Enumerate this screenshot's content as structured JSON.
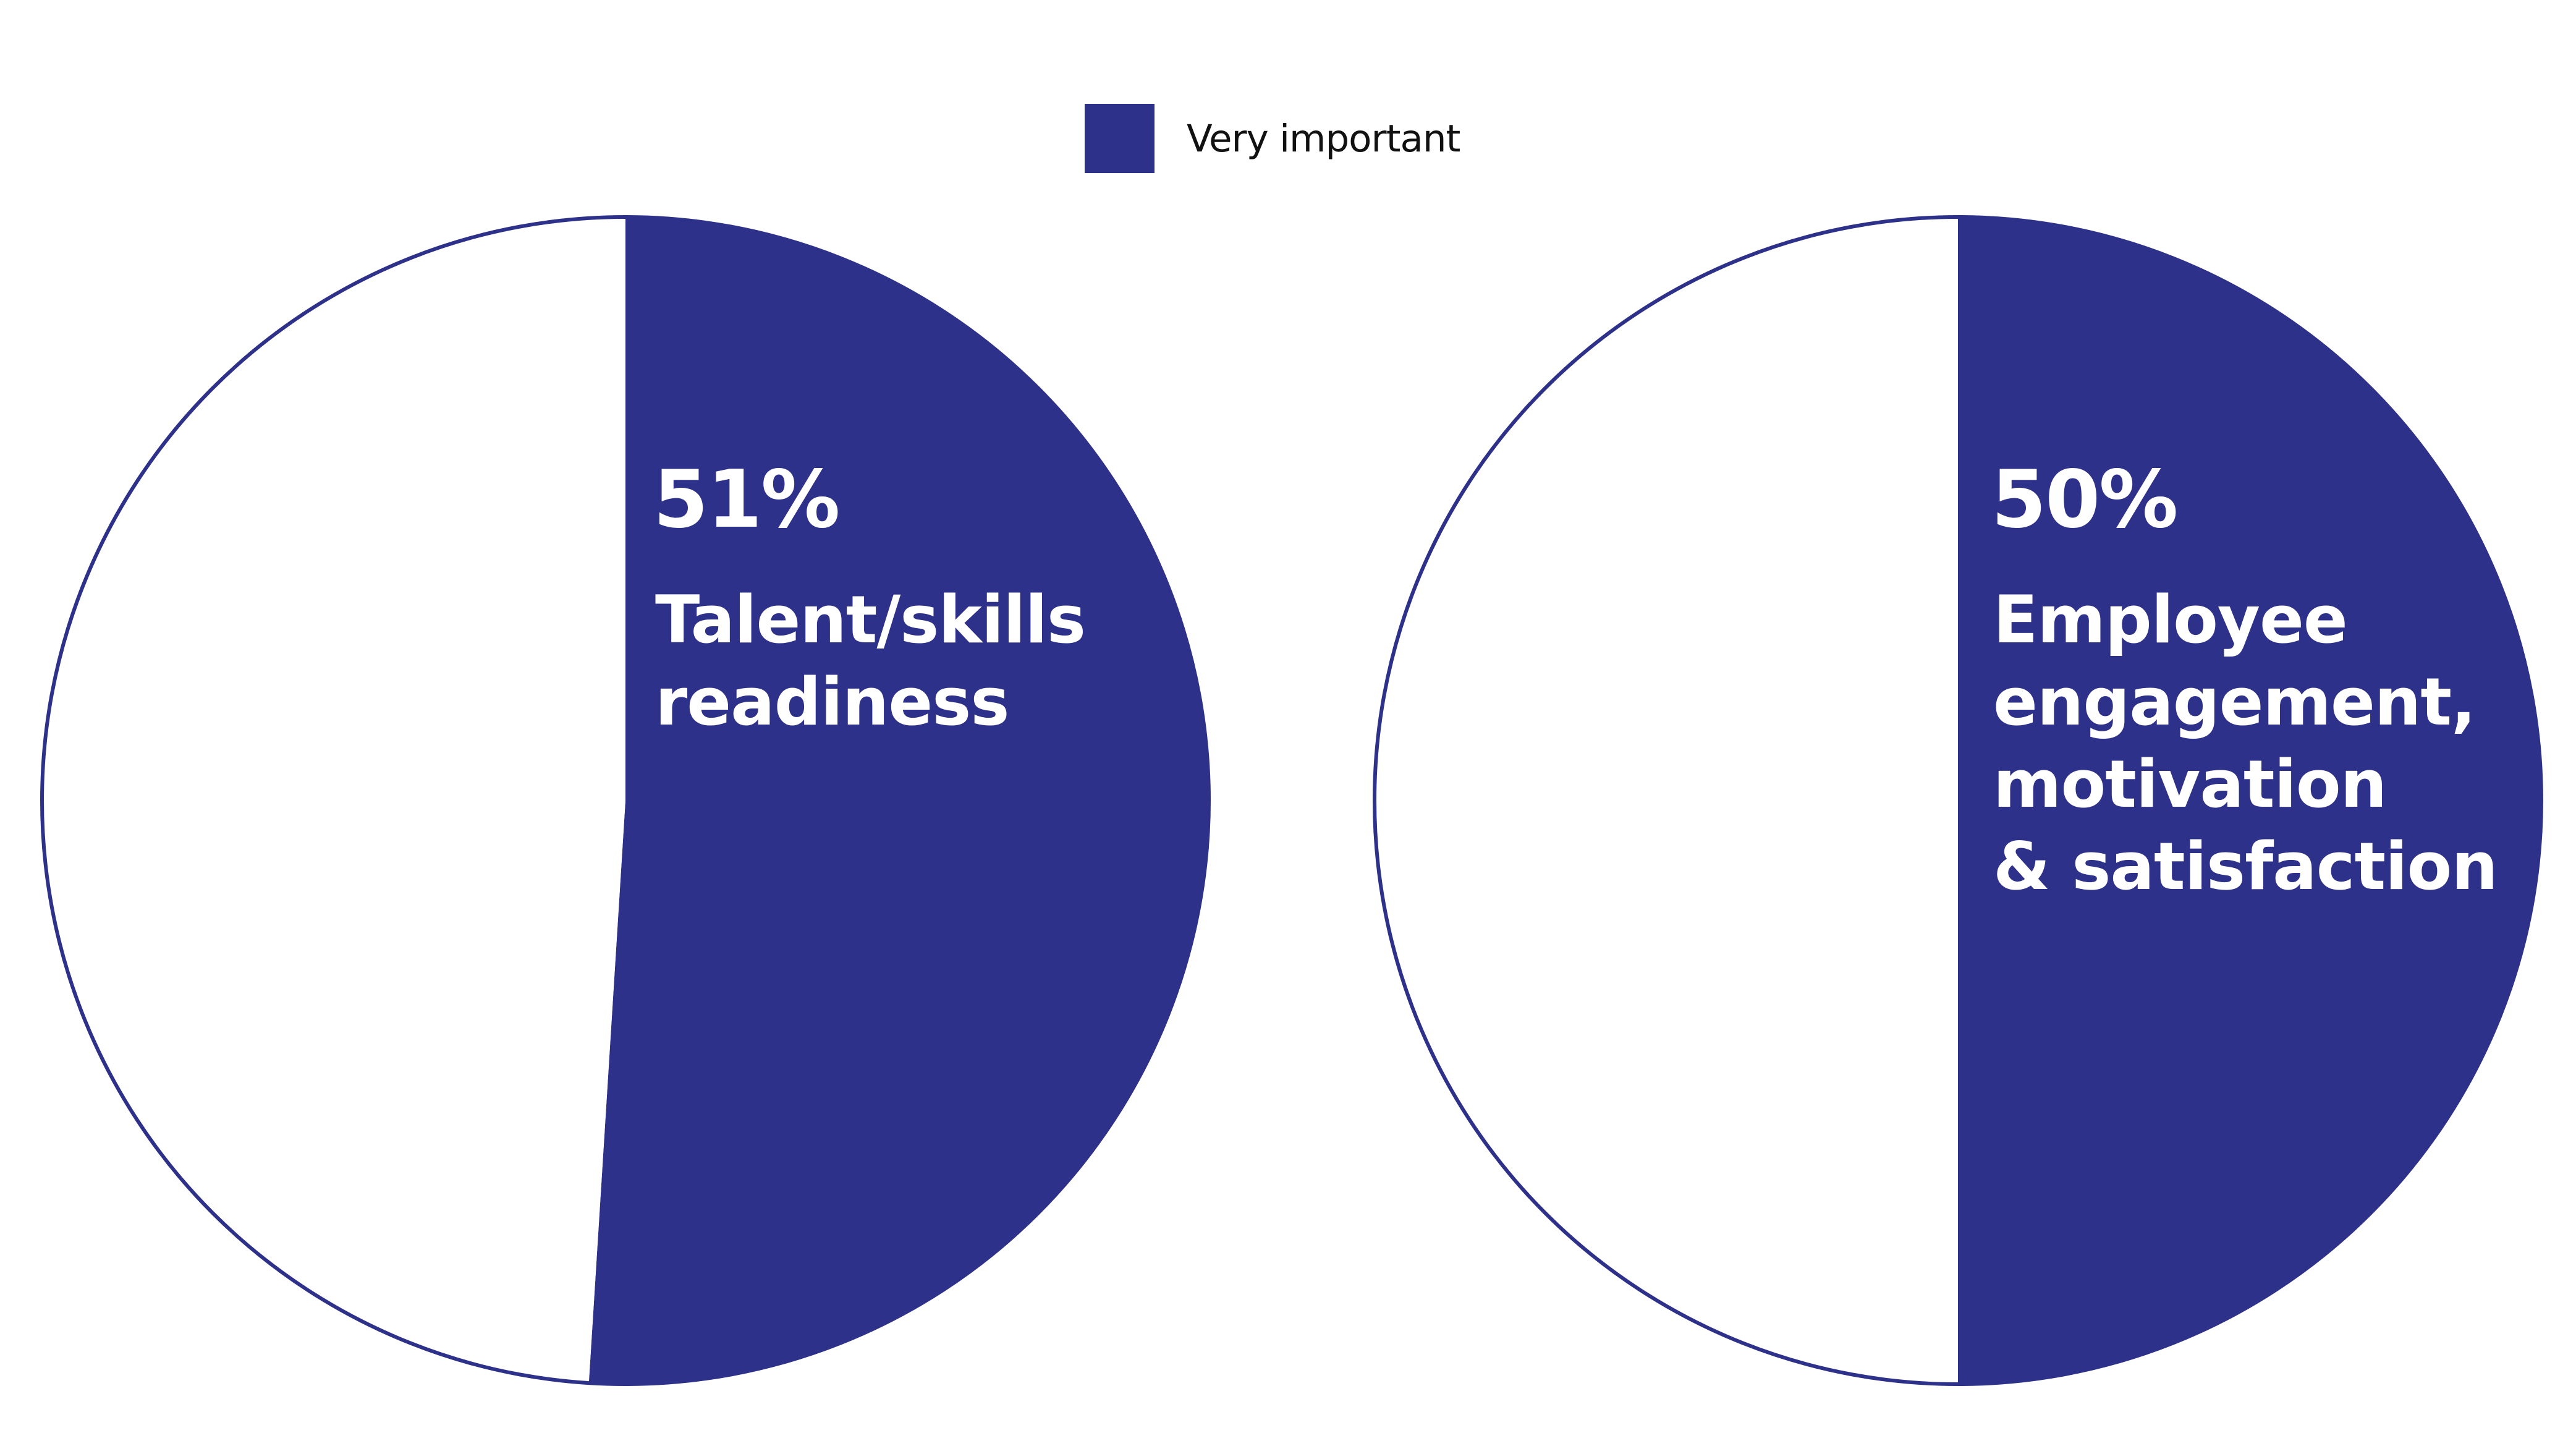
{
  "legend": {
    "label": "Very important",
    "color": "#2e3189"
  },
  "chart_data": [
    {
      "type": "pie",
      "slices": [
        {
          "name": "Very important",
          "value": 51,
          "color": "#2e3189"
        },
        {
          "name": "",
          "value": 49,
          "color": "#ffffff"
        }
      ],
      "value_label": "51%",
      "category_label": "Talent/skills\nreadiness"
    },
    {
      "type": "pie",
      "slices": [
        {
          "name": "Very important",
          "value": 50,
          "color": "#2e3189"
        },
        {
          "name": "",
          "value": 50,
          "color": "#ffffff"
        }
      ],
      "value_label": "50%",
      "category_label": "Employee\nengagement,\nmotivation\n& satisfaction"
    }
  ]
}
